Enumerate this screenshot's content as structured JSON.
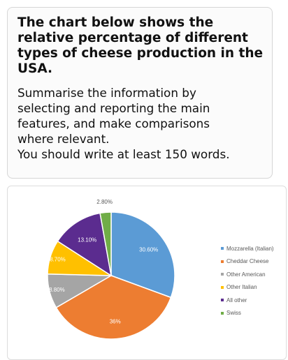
{
  "task": {
    "title": "The chart below shows the relative percentage of different types of cheese production in the USA.",
    "instruction_lines": [
      "Summarise the information by",
      "selecting and reporting the main",
      "features, and make comparisons",
      "where relevant.",
      "You should write at least 150 words."
    ]
  },
  "chart_data": {
    "type": "pie",
    "title": "",
    "legend_position": "right",
    "slices": [
      {
        "label": "Mozzarella (Italian)",
        "value": 30.6,
        "value_label": "30.60%",
        "color": "#5b9bd5"
      },
      {
        "label": "Cheddar Cheese",
        "value": 36,
        "value_label": "36%",
        "color": "#ed7d31"
      },
      {
        "label": "Other American",
        "value": 8.8,
        "value_label": "8.80%",
        "color": "#a5a5a5"
      },
      {
        "label": "Other Italian",
        "value": 8.7,
        "value_label": "8.70%",
        "color": "#ffc000"
      },
      {
        "label": "All other",
        "value": 13.1,
        "value_label": "13.10%",
        "color": "#5b2c8f"
      },
      {
        "label": "Swiss",
        "value": 2.8,
        "value_label": "2.80%",
        "color": "#70ad47"
      }
    ]
  }
}
